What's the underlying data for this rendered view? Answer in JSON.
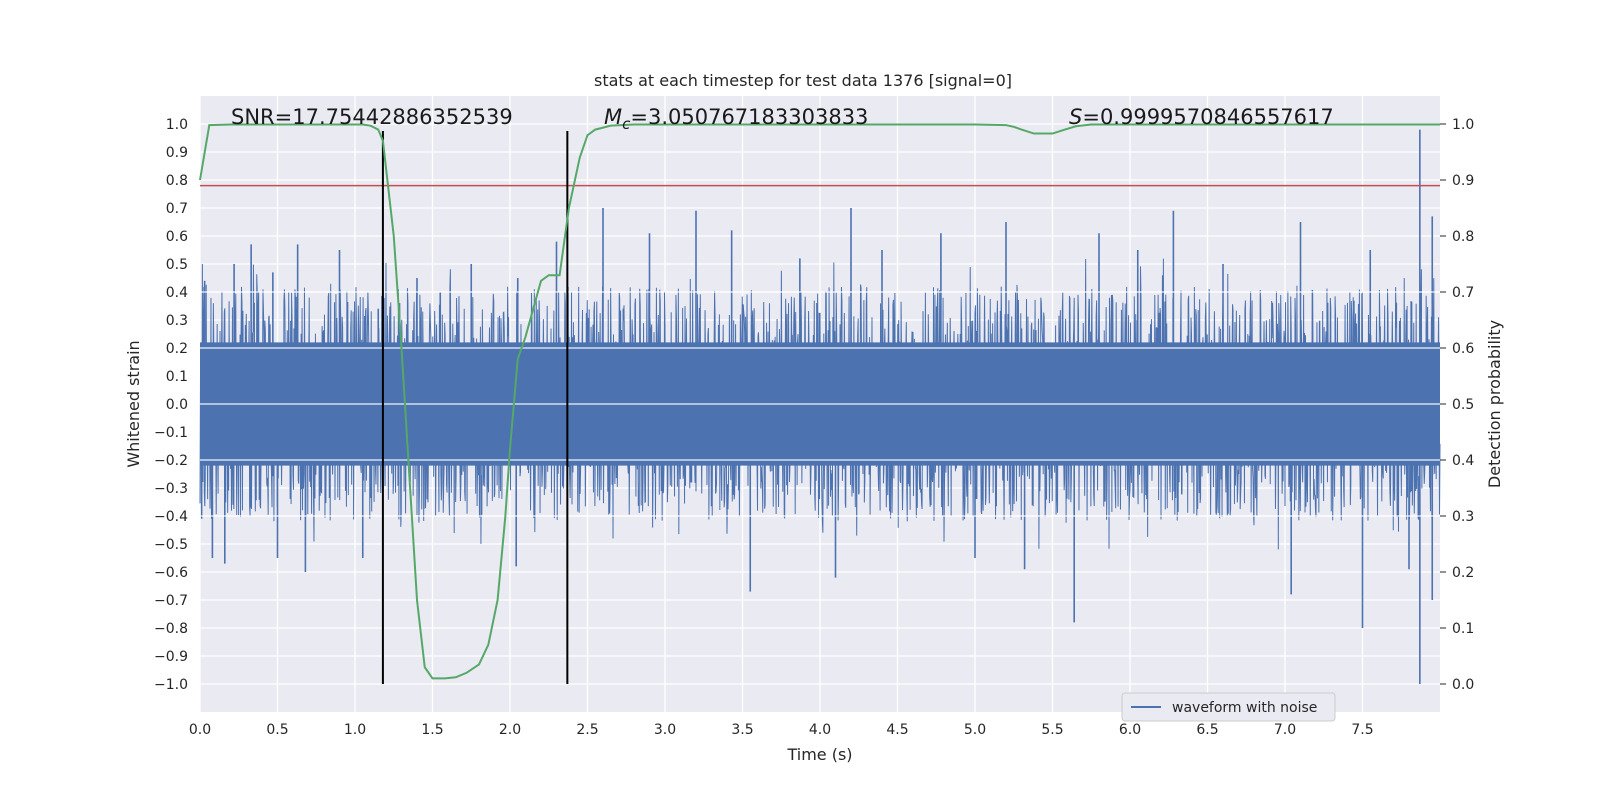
{
  "chart_data": {
    "type": "line",
    "title": "stats at each timestep for test data 1376 [signal=0]",
    "xlabel": "Time (s)",
    "ylabel_left": "Whitened strain",
    "ylabel_right": "Detection probability",
    "xlim": [
      0.0,
      8.0
    ],
    "ylim_left": [
      -1.1,
      1.1
    ],
    "ylim_right": [
      -0.05,
      1.05
    ],
    "x_ticks": [
      "0.0",
      "0.5",
      "1.0",
      "1.5",
      "2.0",
      "2.5",
      "3.0",
      "3.5",
      "4.0",
      "4.5",
      "5.0",
      "5.5",
      "6.0",
      "6.5",
      "7.0",
      "7.5"
    ],
    "y_left_ticks": [
      "1.0",
      "0.9",
      "0.8",
      "0.7",
      "0.6",
      "0.5",
      "0.4",
      "0.3",
      "0.2",
      "0.1",
      "0.0",
      "−0.1",
      "−0.2",
      "−0.3",
      "−0.4",
      "−0.5",
      "−0.6",
      "−0.7",
      "−0.8",
      "−0.9",
      "−1.0"
    ],
    "y_right_ticks": [
      "1.0",
      "0.9",
      "0.8",
      "0.7",
      "0.6",
      "0.5",
      "0.4",
      "0.3",
      "0.2",
      "0.1",
      "0.0"
    ],
    "grid": true,
    "annotations": {
      "snr": "SNR=17.75442886352539",
      "mc_prefix": "M",
      "mc_sub": "c",
      "mc_value": "=3.050767183303833",
      "s_prefix": "S",
      "s_value": "=0.9999570846557617"
    },
    "vertical_lines": [
      1.18,
      2.37
    ],
    "vertical_line_range": [
      -1.0,
      0.975
    ],
    "threshold_line": {
      "y": 0.78,
      "color": "#c44e52"
    },
    "series": [
      {
        "name": "waveform with noise",
        "axis": "left",
        "color": "#4c72b0",
        "description": "dense noisy whitened strain, mostly within -0.45..0.45 with spikes",
        "core_amplitude": 0.42,
        "spikes": [
          {
            "t": 0.03,
            "v": 0.44
          },
          {
            "t": 0.08,
            "v": -0.55
          },
          {
            "t": 0.16,
            "v": -0.57
          },
          {
            "t": 0.22,
            "v": 0.5
          },
          {
            "t": 0.33,
            "v": 0.57
          },
          {
            "t": 0.47,
            "v": 0.47
          },
          {
            "t": 0.5,
            "v": -0.55
          },
          {
            "t": 0.63,
            "v": 0.57
          },
          {
            "t": 0.68,
            "v": -0.6
          },
          {
            "t": 0.9,
            "v": 0.55
          },
          {
            "t": 1.05,
            "v": -0.55
          },
          {
            "t": 1.15,
            "v": 0.34
          },
          {
            "t": 1.4,
            "v": 0.45
          },
          {
            "t": 1.55,
            "v": 0.4
          },
          {
            "t": 1.75,
            "v": 0.5
          },
          {
            "t": 2.04,
            "v": -0.58
          },
          {
            "t": 2.05,
            "v": 0.45
          },
          {
            "t": 2.3,
            "v": 0.58
          },
          {
            "t": 2.6,
            "v": 0.7
          },
          {
            "t": 2.9,
            "v": 0.61
          },
          {
            "t": 3.2,
            "v": 0.69
          },
          {
            "t": 3.43,
            "v": 0.62
          },
          {
            "t": 3.55,
            "v": -0.67
          },
          {
            "t": 3.87,
            "v": 0.52
          },
          {
            "t": 4.1,
            "v": -0.62
          },
          {
            "t": 4.2,
            "v": 0.7
          },
          {
            "t": 4.4,
            "v": 0.55
          },
          {
            "t": 4.78,
            "v": 0.61
          },
          {
            "t": 5.0,
            "v": -0.55
          },
          {
            "t": 5.2,
            "v": 0.65
          },
          {
            "t": 5.32,
            "v": -0.59
          },
          {
            "t": 5.64,
            "v": -0.78
          },
          {
            "t": 5.8,
            "v": 0.61
          },
          {
            "t": 6.05,
            "v": 0.55
          },
          {
            "t": 6.28,
            "v": 0.69
          },
          {
            "t": 6.6,
            "v": 0.5
          },
          {
            "t": 7.04,
            "v": -0.68
          },
          {
            "t": 7.1,
            "v": 0.65
          },
          {
            "t": 7.5,
            "v": -0.8
          },
          {
            "t": 7.55,
            "v": 0.55
          },
          {
            "t": 7.8,
            "v": -0.59
          },
          {
            "t": 7.87,
            "v": 0.98
          },
          {
            "t": 7.87,
            "v": -1.0
          },
          {
            "t": 7.95,
            "v": 0.67
          },
          {
            "t": 7.95,
            "v": -0.7
          }
        ]
      },
      {
        "name": "detection probability",
        "axis": "right",
        "color": "#55a868",
        "x": [
          0.0,
          0.06,
          0.2,
          0.5,
          0.8,
          1.0,
          1.05,
          1.1,
          1.15,
          1.18,
          1.25,
          1.3,
          1.4,
          1.45,
          1.5,
          1.58,
          1.65,
          1.72,
          1.8,
          1.86,
          1.92,
          1.97,
          2.0,
          2.05,
          2.1,
          2.2,
          2.25,
          2.32,
          2.38,
          2.45,
          2.5,
          2.55,
          2.65,
          2.8,
          3.0,
          3.5,
          4.0,
          4.5,
          5.0,
          5.2,
          5.25,
          5.3,
          5.38,
          5.5,
          5.58,
          5.65,
          5.75,
          6.0,
          7.0,
          8.0
        ],
        "values": [
          0.9,
          0.998,
          0.999,
          0.999,
          0.999,
          0.999,
          0.999,
          0.997,
          0.99,
          0.97,
          0.8,
          0.6,
          0.15,
          0.03,
          0.01,
          0.01,
          0.012,
          0.02,
          0.035,
          0.07,
          0.15,
          0.3,
          0.42,
          0.58,
          0.62,
          0.72,
          0.73,
          0.73,
          0.85,
          0.94,
          0.98,
          0.99,
          0.997,
          0.999,
          0.999,
          0.999,
          0.999,
          0.999,
          0.999,
          0.998,
          0.995,
          0.99,
          0.983,
          0.983,
          0.99,
          0.996,
          0.999,
          0.999,
          0.999,
          0.999
        ]
      }
    ],
    "legend": {
      "placement": "lower-right",
      "entries": [
        "waveform with noise"
      ]
    }
  }
}
